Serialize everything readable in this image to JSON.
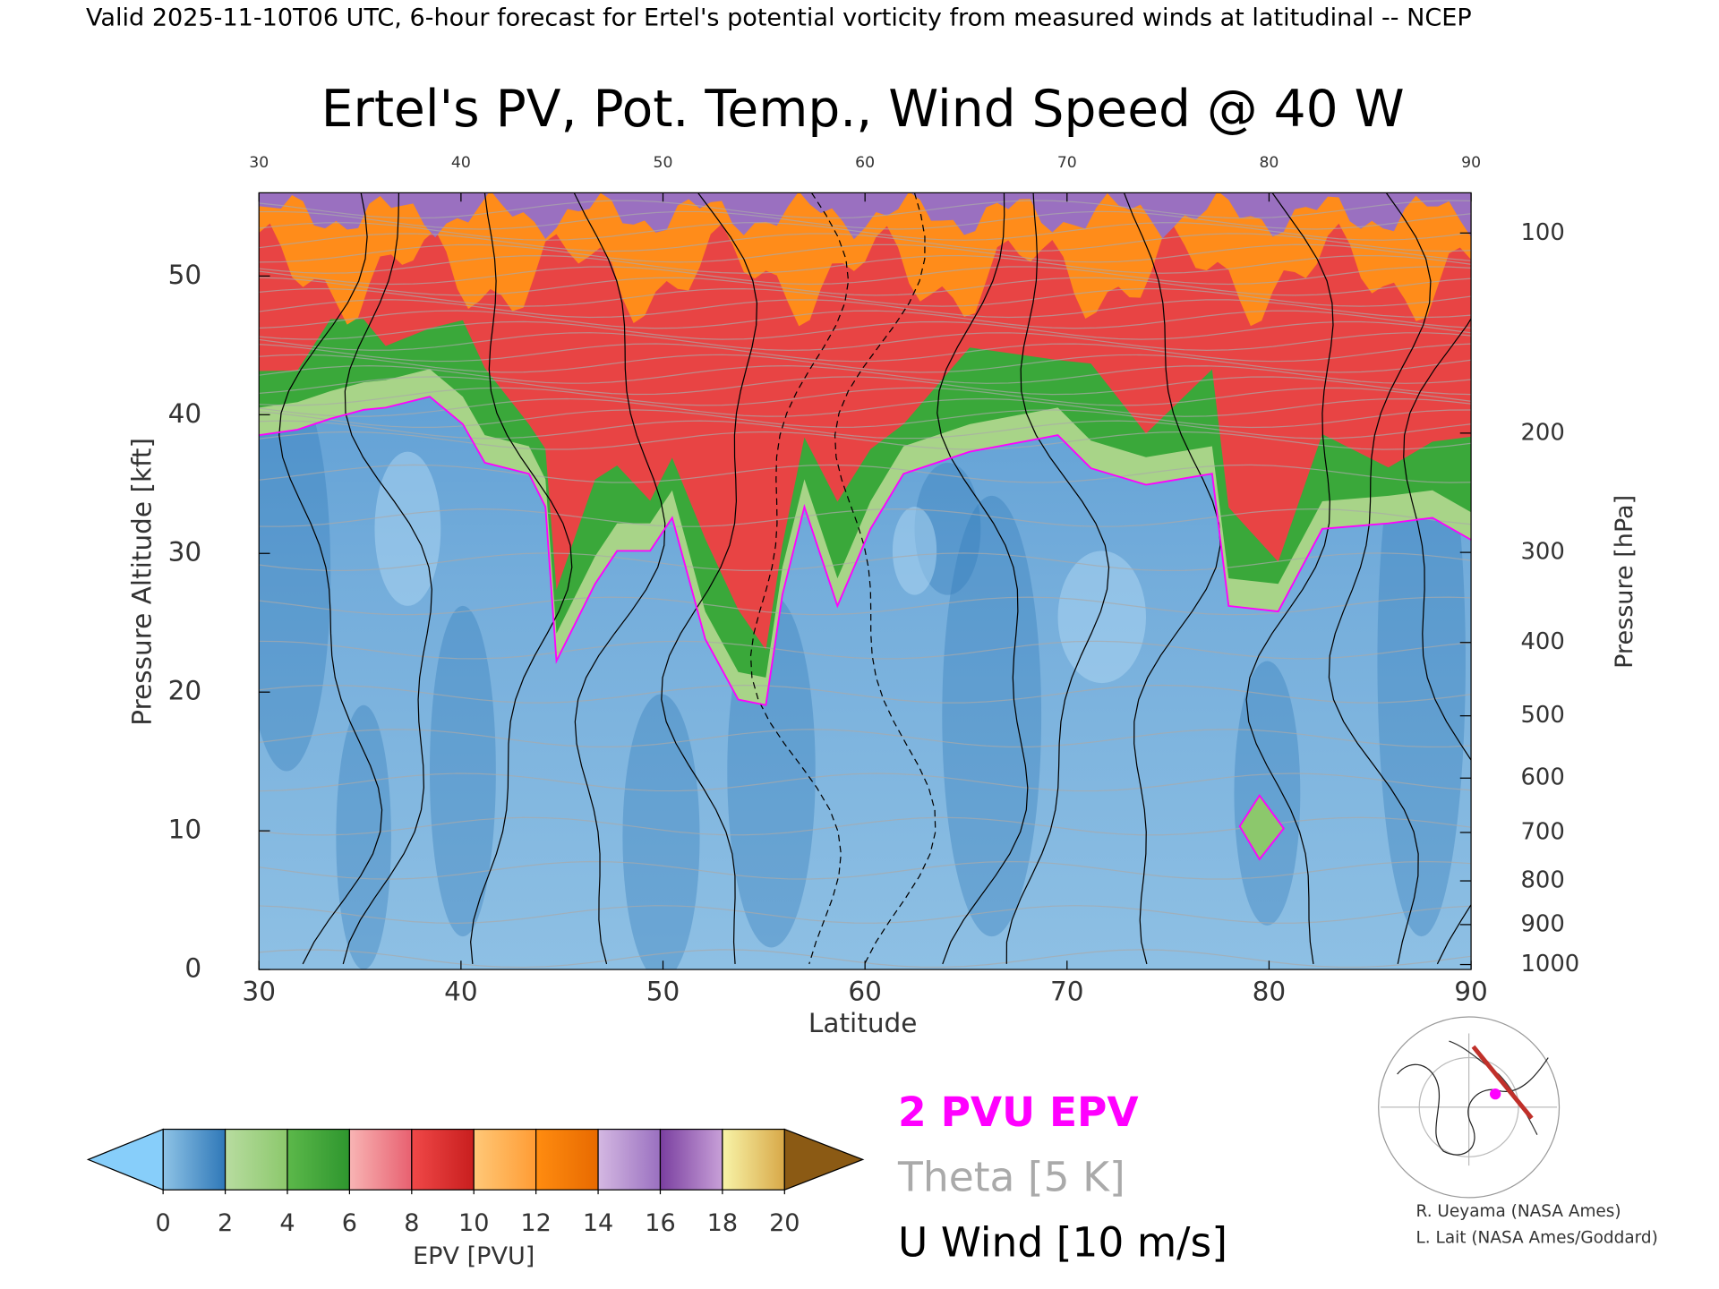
{
  "header": {
    "text": "Valid 2025-11-10T06 UTC, 6-hour forecast for Ertel's potential vorticity from measured winds at latitudinal -- NCEP"
  },
  "chart_data": {
    "type": "cross-section",
    "title": "Ertel's PV, Pot. Temp., Wind Speed @ 40 W",
    "x_label": "Latitude",
    "y_label": "Pressure Altitude [kft]",
    "y2_label": "Pressure [hPa]",
    "xlim": [
      30,
      90
    ],
    "xticks": [
      30,
      40,
      50,
      60,
      70,
      80,
      90
    ],
    "ylim": [
      0,
      56
    ],
    "yticks": [
      0,
      10,
      20,
      30,
      40,
      50
    ],
    "y2lim": [
      1013,
      87
    ],
    "y2ticks": [
      100,
      200,
      300,
      400,
      500,
      600,
      700,
      800,
      900,
      1000
    ],
    "y2scale": "standard-atmosphere"
  },
  "colorbar": {
    "label": "EPV [PVU]",
    "clim": [
      0,
      20
    ],
    "ticks": [
      0,
      2,
      4,
      6,
      8,
      10,
      12,
      14,
      16,
      18,
      20
    ],
    "colors": [
      [
        "#8ec3e6",
        "#2f78b8"
      ],
      [
        "#b8dca0",
        "#8cc86c"
      ],
      [
        "#5cb84a",
        "#2e962e"
      ],
      [
        "#f8b4b4",
        "#e86070"
      ],
      [
        "#f04848",
        "#c81e1e"
      ],
      [
        "#ffc878",
        "#ff9c34"
      ],
      [
        "#ff8c10",
        "#e86a00"
      ],
      [
        "#d4b8e2",
        "#9a70c0"
      ],
      [
        "#7a3fa0",
        "#c8a0d8"
      ],
      [
        "#f8f4a8",
        "#d8a848"
      ]
    ],
    "under_color": "#87cefa",
    "over_color": "#8b5a14"
  },
  "legend": {
    "items": [
      {
        "name": "2 PVU EPV",
        "color": "#ff00ff"
      },
      {
        "name": "Theta [5 K]",
        "color": "#aaaaaa"
      },
      {
        "name": "U Wind [10 m/s]",
        "color": "#000000"
      }
    ]
  },
  "credits": [
    "R. Ueyama (NASA Ames)",
    "L. Lait (NASA Ames/Goddard)"
  ]
}
